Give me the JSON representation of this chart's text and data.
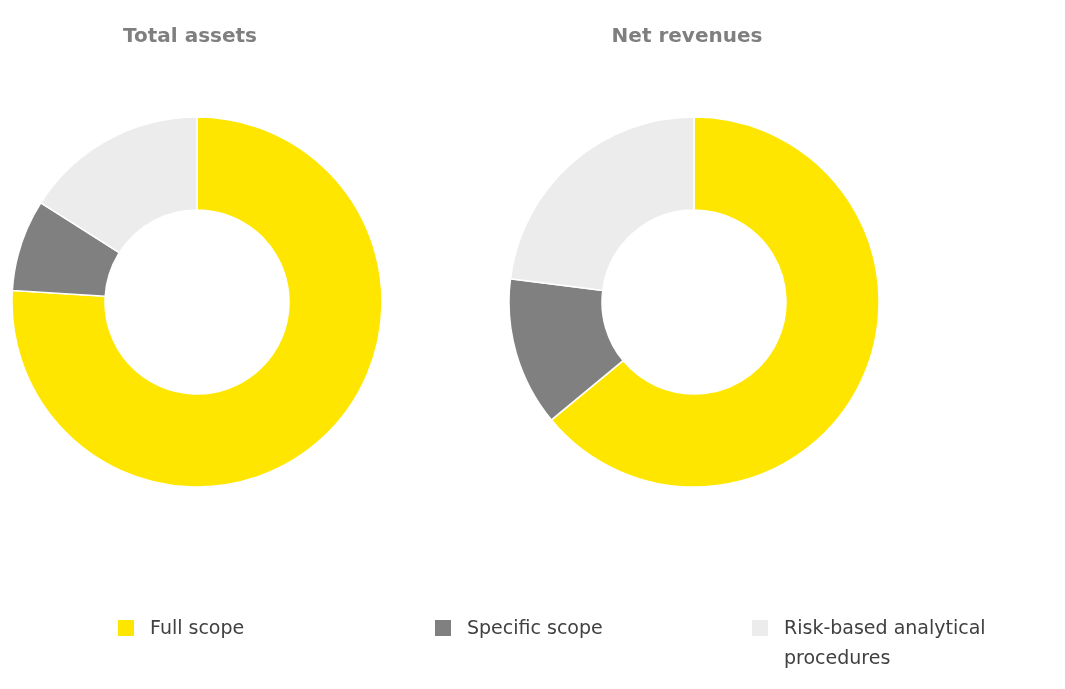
{
  "chart_data": [
    {
      "type": "donut",
      "title": "Total assets",
      "categories": [
        "Full scope",
        "Specific scope",
        "Risk-based analytical procedures"
      ],
      "values": [
        76,
        8,
        16
      ],
      "colors": [
        "#ffe600",
        "#808080",
        "#ececec"
      ],
      "legend": "bottom"
    },
    {
      "type": "donut",
      "title": "Net revenues",
      "categories": [
        null,
        null,
        null
      ],
      "values": [
        64,
        13,
        23
      ],
      "colors": [
        "#ffe600",
        "#808080",
        "#ececec"
      ]
    }
  ]
}
